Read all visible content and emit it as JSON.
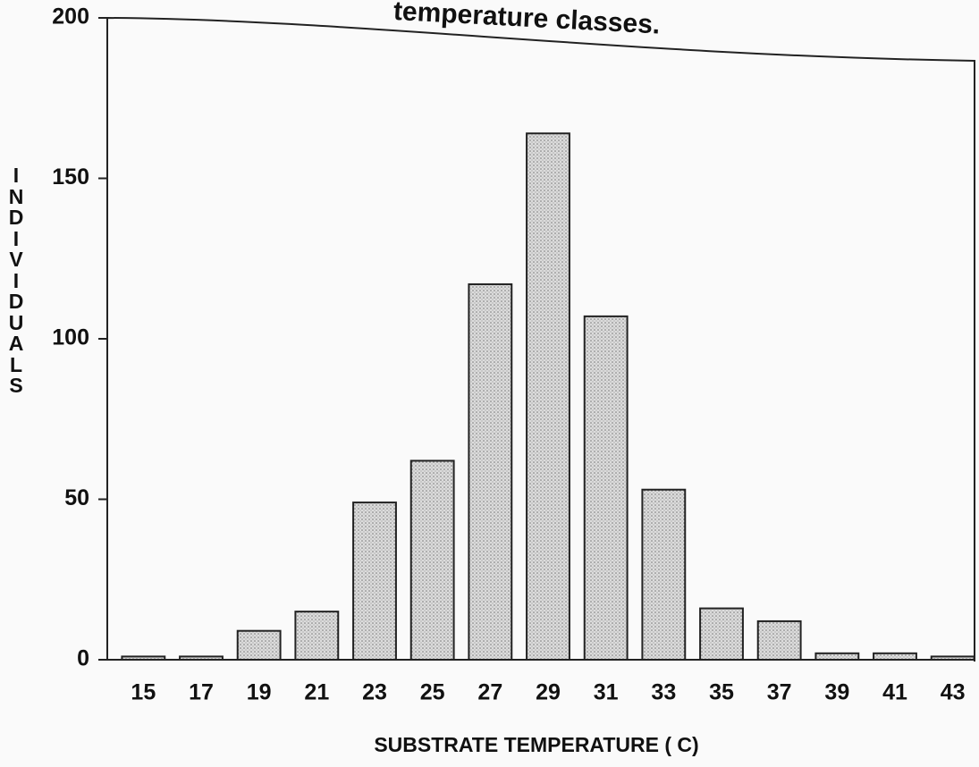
{
  "chart_data": {
    "type": "bar",
    "title": "temperature classes.",
    "x_label": "SUBSTRATE TEMPERATURE ( C)",
    "y_label": "INDIVIDUALS",
    "categories": [
      "15",
      "17",
      "19",
      "21",
      "23",
      "25",
      "27",
      "29",
      "31",
      "33",
      "35",
      "37",
      "39",
      "41",
      "43"
    ],
    "values": [
      1,
      1,
      9,
      15,
      49,
      62,
      117,
      164,
      107,
      53,
      16,
      12,
      2,
      2,
      1
    ],
    "color": "#d4d4d4",
    "ylim": [
      0,
      200
    ],
    "yticks": [
      0,
      50,
      100,
      150,
      200
    ],
    "grid": false
  }
}
